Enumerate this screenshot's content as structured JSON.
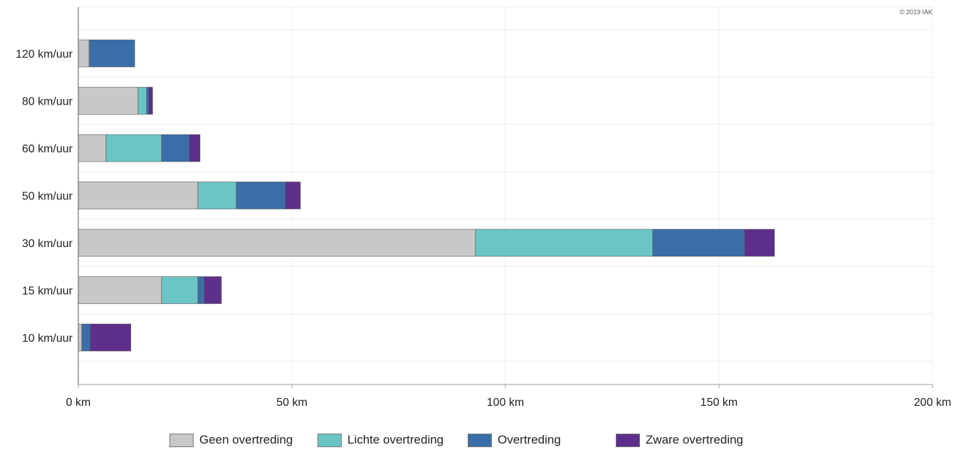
{
  "chart_data": {
    "type": "bar",
    "orientation": "horizontal",
    "stacked": true,
    "title": "",
    "xlabel": "",
    "ylabel": "",
    "copyright": "© 2019 IAK",
    "categories": [
      "120 km/uur",
      "80 km/uur",
      "60 km/uur",
      "50 km/uur",
      "30 km/uur",
      "15 km/uur",
      "10 km/uur"
    ],
    "series": [
      {
        "name": "Geen overtreding",
        "color": "#c8c8c8",
        "values": [
          2.5,
          14,
          6.5,
          28,
          93,
          19.5,
          0.8
        ]
      },
      {
        "name": "Lichte overtreding",
        "color": "#6cc5c5",
        "values": [
          0.2,
          2,
          13,
          9,
          41.5,
          8.5,
          0
        ]
      },
      {
        "name": "Overtreding",
        "color": "#3a6ea8",
        "values": [
          10.5,
          0.5,
          6.5,
          11.5,
          21.5,
          1.5,
          2
        ]
      },
      {
        "name": "Zware overtreding",
        "color": "#5e2f8a",
        "values": [
          0,
          0.9,
          2.5,
          3.5,
          7,
          4,
          9.5
        ]
      }
    ],
    "xlim": [
      0,
      200
    ],
    "xticks": [
      0,
      50,
      100,
      150,
      200
    ],
    "xtick_labels": [
      "0 km",
      "50 km",
      "100 km",
      "150 km",
      "200 km"
    ],
    "grid": true,
    "legend_position": "bottom-center"
  }
}
